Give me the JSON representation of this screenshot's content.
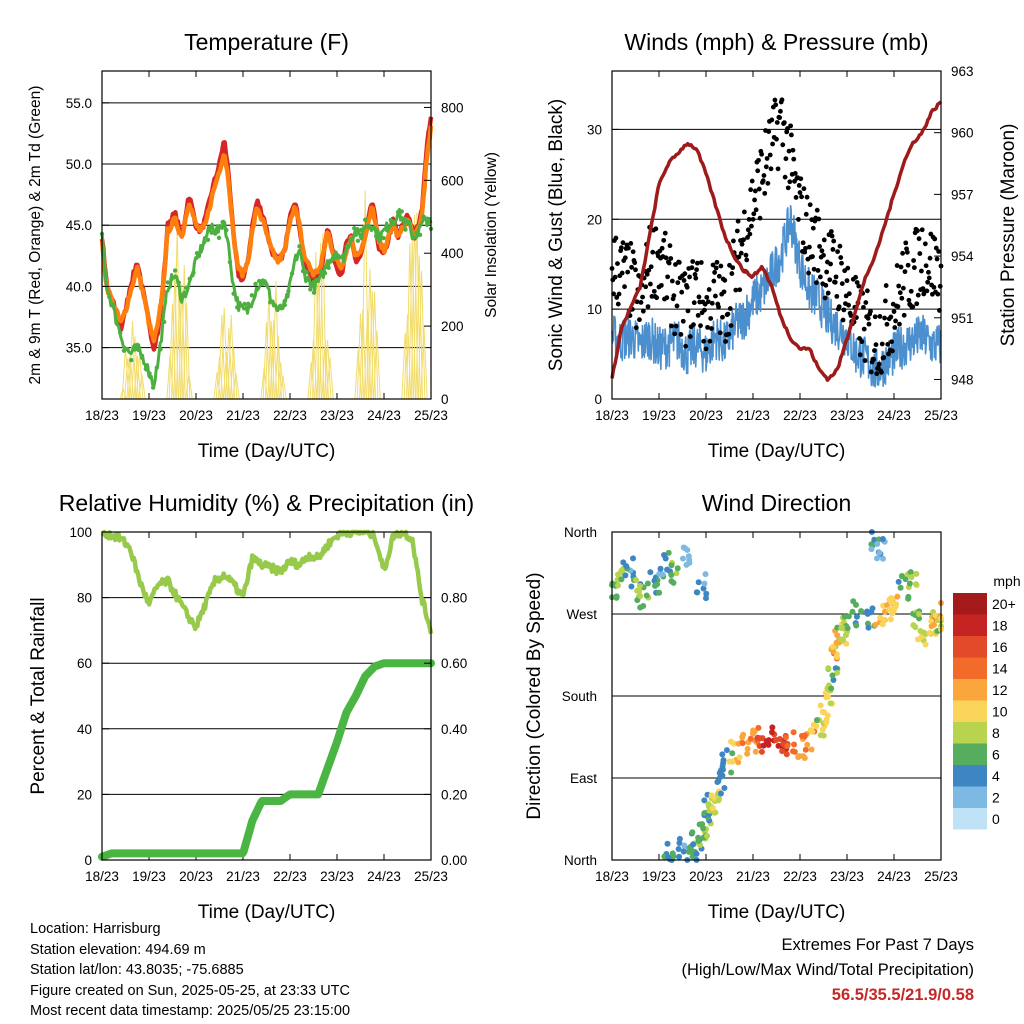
{
  "time_axis": {
    "label": "Time (Day/UTC)",
    "ticks": [
      "18/23",
      "19/23",
      "20/23",
      "21/23",
      "22/23",
      "23/23",
      "24/23",
      "25/23"
    ]
  },
  "chart_data": [
    {
      "id": "temperature",
      "type": "line",
      "title": "Temperature (F)",
      "xlabel": "Time (Day/UTC)",
      "ylabel": "2m & 9m T (Red, Orange) & 2m Td (Green)",
      "y2label": "Solar Insolation (Yellow)",
      "ylim": [
        30.8,
        57.6
      ],
      "y2lim": [
        0,
        900
      ],
      "yticks": [
        "35.0",
        "40.0",
        "45.0",
        "50.0",
        "55.0"
      ],
      "y2ticks": [
        "0",
        "200",
        "400",
        "600",
        "800"
      ],
      "x": [
        0,
        0.1,
        0.25,
        0.4,
        0.5,
        0.6,
        0.75,
        0.9,
        1.0,
        1.1,
        1.2,
        1.3,
        1.4,
        1.55,
        1.7,
        1.85,
        2.0,
        2.1,
        2.2,
        2.35,
        2.5,
        2.6,
        2.7,
        2.8,
        2.9,
        3.0,
        3.1,
        3.2,
        3.3,
        3.45,
        3.6,
        3.75,
        3.9,
        4.0,
        4.1,
        4.2,
        4.3,
        4.5,
        4.65,
        4.8,
        4.9,
        5.0,
        5.1,
        5.2,
        5.3,
        5.4,
        5.5,
        5.6,
        5.75,
        5.9,
        6.0,
        6.1,
        6.2,
        6.3,
        6.5,
        6.65,
        6.8,
        6.9,
        7.0
      ],
      "series": [
        {
          "name": "2m T",
          "color": "#d62728",
          "values": [
            44,
            40,
            38.5,
            36.5,
            38,
            40,
            42,
            39,
            37,
            35,
            36.5,
            40,
            45,
            46,
            44,
            47.5,
            45,
            44.5,
            45.5,
            48,
            50,
            52,
            49,
            44,
            41,
            40.5,
            42,
            45,
            47,
            45.5,
            43,
            42,
            43,
            46,
            47,
            45,
            42,
            40.5,
            41,
            45,
            43,
            41.5,
            41,
            43.5,
            44,
            42,
            42.5,
            44,
            47,
            43,
            42.5,
            44,
            45.5,
            44,
            46,
            44,
            46,
            51,
            54
          ]
        },
        {
          "name": "9m T",
          "color": "#ff7f0e",
          "values": [
            43.5,
            40,
            38.5,
            37,
            38,
            39.5,
            41.5,
            39,
            37,
            35.5,
            37,
            40,
            44.5,
            45.5,
            44,
            47,
            45,
            44.5,
            45,
            47.5,
            49.5,
            51,
            48.5,
            44,
            41.5,
            41,
            42,
            44.5,
            46.5,
            45,
            43,
            42,
            43,
            45.5,
            46.5,
            45,
            42.5,
            41,
            41.5,
            44.5,
            43,
            42,
            41.5,
            43,
            44,
            42.5,
            43,
            44,
            46.5,
            43.5,
            43,
            44,
            45,
            44,
            45.5,
            44,
            45.5,
            50,
            53
          ]
        },
        {
          "name": "2m Td",
          "color": "#4caf3f",
          "values": [
            44,
            40,
            38,
            36,
            35,
            34.5,
            35,
            34,
            33,
            32,
            34,
            37,
            40,
            41,
            39,
            40,
            42,
            43,
            44,
            45,
            44.5,
            45.5,
            43,
            40,
            38.5,
            38,
            38,
            39,
            40,
            40.5,
            39,
            38,
            38.5,
            40,
            42,
            43,
            41,
            40,
            40.5,
            42,
            42.5,
            43,
            42,
            43,
            44,
            44.5,
            44,
            45,
            45,
            44,
            44.5,
            45,
            45.5,
            46,
            45,
            44,
            45,
            45.5,
            45
          ]
        },
        {
          "name": "Solar Insolation",
          "color": "#f2dc6a",
          "values": [
            0,
            0,
            0,
            0,
            0,
            0,
            0,
            0,
            0,
            0,
            0,
            0,
            0,
            0,
            0,
            0,
            0,
            0,
            0,
            0,
            0,
            0,
            0,
            0,
            0,
            0,
            0,
            0,
            0,
            0,
            0,
            0,
            0,
            0,
            0,
            0,
            0,
            0,
            0,
            0,
            0,
            0,
            0,
            0,
            0,
            0,
            0,
            0,
            0,
            0,
            0,
            0,
            0,
            0,
            0,
            0,
            0,
            0,
            0
          ]
        }
      ]
    },
    {
      "id": "winds",
      "type": "scatter",
      "title": "Winds (mph) & Pressure (mb)",
      "xlabel": "Time (Day/UTC)",
      "ylabel": "Sonic Wind & Gust (Blue, Black)",
      "y2label": "Station Pressure (Maroon)",
      "ylim": [
        0,
        36.5
      ],
      "y2lim": [
        947.05,
        963.0
      ],
      "yticks": [
        "0",
        "10",
        "20",
        "30"
      ],
      "y2ticks": [
        "948",
        "951",
        "954",
        "957",
        "960",
        "963"
      ],
      "x": [
        0,
        0.2,
        0.4,
        0.6,
        0.8,
        1.0,
        1.2,
        1.4,
        1.6,
        1.8,
        2.0,
        2.2,
        2.4,
        2.6,
        2.8,
        3.0,
        3.2,
        3.4,
        3.6,
        3.8,
        4.0,
        4.2,
        4.4,
        4.6,
        4.8,
        5.0,
        5.2,
        5.4,
        5.6,
        5.8,
        6.0,
        6.2,
        6.4,
        6.6,
        6.8,
        7.0
      ],
      "series": [
        {
          "name": "Sonic Wind",
          "color": "#4b8fce",
          "values": [
            7,
            6.5,
            7,
            6,
            7,
            5.5,
            6,
            6.5,
            5,
            6,
            5,
            7,
            6,
            8,
            9,
            11,
            12,
            14,
            16,
            20,
            15,
            12,
            11,
            9,
            8,
            7,
            5,
            4.5,
            3,
            4,
            5,
            6,
            6.5,
            7,
            6,
            6
          ]
        },
        {
          "name": "Gust",
          "color": "#000000",
          "values": [
            15,
            14,
            13,
            10,
            15,
            16,
            13,
            11,
            10,
            13,
            9,
            12,
            10,
            14,
            18,
            22,
            25,
            28,
            31,
            26,
            21,
            18,
            17,
            15,
            14,
            12,
            9,
            8,
            6,
            8,
            10,
            13,
            14,
            16,
            15,
            14
          ]
        },
        {
          "name": "Station Pressure",
          "color": "#9e1b1b",
          "values": [
            948,
            950.5,
            951.5,
            952.5,
            955,
            957.5,
            958.5,
            959,
            959.5,
            959.2,
            958,
            956.5,
            955,
            954,
            953.3,
            953,
            953.5,
            952.5,
            951,
            950,
            949.5,
            949.5,
            948.5,
            948,
            948.5,
            950,
            951.5,
            953,
            954,
            955.5,
            957,
            958.5,
            959.5,
            960,
            961,
            961.5
          ]
        }
      ]
    },
    {
      "id": "humidity",
      "type": "line",
      "title": "Relative Humidity (%) & Precipitation (in)",
      "xlabel": "Time (Day/UTC)",
      "ylabel": "Percent & Total Rainfall",
      "ylim": [
        0,
        100
      ],
      "y2lim": [
        0,
        1.0
      ],
      "yticks": [
        "0",
        "20",
        "40",
        "60",
        "80",
        "100"
      ],
      "y2ticks": [
        "0.00",
        "0.20",
        "0.40",
        "0.60",
        "0.80"
      ],
      "x": [
        0,
        0.2,
        0.4,
        0.6,
        0.8,
        1.0,
        1.2,
        1.4,
        1.6,
        1.8,
        2.0,
        2.2,
        2.4,
        2.6,
        2.8,
        3.0,
        3.2,
        3.4,
        3.6,
        3.8,
        4.0,
        4.2,
        4.4,
        4.6,
        4.8,
        5.0,
        5.2,
        5.4,
        5.6,
        5.8,
        6.0,
        6.2,
        6.4,
        6.6,
        6.8,
        7.0
      ],
      "series": [
        {
          "name": "Relative Humidity",
          "color": "#97c94b",
          "values": [
            100,
            99,
            98,
            95,
            85,
            78,
            84,
            85,
            80,
            75,
            71,
            78,
            85,
            87,
            84,
            80,
            92,
            90,
            89,
            88,
            91,
            90,
            93,
            92,
            96,
            99,
            100,
            100,
            100,
            99,
            88,
            99,
            100,
            98,
            80,
            70
          ]
        },
        {
          "name": "Total Precipitation",
          "color": "#4bb543",
          "values": [
            0.01,
            0.02,
            0.02,
            0.02,
            0.02,
            0.02,
            0.02,
            0.02,
            0.02,
            0.02,
            0.02,
            0.02,
            0.02,
            0.02,
            0.02,
            0.02,
            0.12,
            0.18,
            0.18,
            0.18,
            0.2,
            0.2,
            0.2,
            0.2,
            0.28,
            0.36,
            0.45,
            0.5,
            0.56,
            0.59,
            0.6,
            0.6,
            0.6,
            0.6,
            0.6,
            0.6
          ]
        }
      ]
    },
    {
      "id": "direction",
      "type": "scatter",
      "title": "Wind Direction",
      "xlabel": "Time (Day/UTC)",
      "ylabel": "Direction (Colored By Speed)",
      "ylim": [
        0,
        360
      ],
      "yticks": [
        "North",
        "East",
        "South",
        "West",
        "North"
      ],
      "legend": {
        "title": "mph",
        "labels": [
          "20+",
          "18",
          "16",
          "14",
          "12",
          "10",
          "8",
          "6",
          "4",
          "2",
          "0"
        ],
        "colors": [
          "#a51b1b",
          "#c62323",
          "#e34a2a",
          "#f26b2b",
          "#fba63c",
          "#fad55a",
          "#b8d34d",
          "#56ad5e",
          "#3d86c3",
          "#7db9e3",
          "#bfe2f6"
        ]
      },
      "points_deg": [
        300,
        310,
        320,
        295,
        290,
        305,
        325,
        315,
        330,
        300,
        10,
        15,
        5,
        20,
        30,
        40,
        60,
        55,
        70,
        85,
        110,
        120,
        125,
        130,
        132,
        135,
        130,
        128,
        125,
        130,
        140,
        160,
        180,
        200,
        230,
        240,
        250,
        255,
        270,
        265,
        270,
        275,
        280,
        350,
        340,
        300,
        310,
        265,
        250,
        260,
        270,
        255
      ],
      "points_x": [
        0.05,
        0.2,
        0.35,
        0.5,
        0.7,
        0.9,
        1.1,
        1.3,
        1.6,
        1.9,
        1.2,
        1.5,
        1.7,
        1.8,
        1.9,
        2.0,
        2.05,
        2.1,
        2.2,
        2.3,
        2.45,
        2.6,
        2.8,
        3.0,
        3.2,
        3.4,
        3.6,
        3.8,
        4.0,
        4.2,
        4.4,
        4.55,
        4.6,
        4.7,
        4.75,
        4.8,
        4.9,
        4.95,
        5.2,
        5.5,
        5.7,
        5.9,
        6.0,
        5.6,
        5.7,
        6.2,
        6.4,
        6.5,
        6.6,
        6.8,
        6.9,
        7.0
      ],
      "points_speed": [
        6,
        8,
        4,
        6,
        7,
        5,
        4,
        6,
        2,
        4,
        5,
        4,
        6,
        5,
        7,
        6,
        5,
        8,
        9,
        4,
        5,
        11,
        12,
        13,
        16,
        18,
        17,
        15,
        14,
        12,
        8,
        10,
        9,
        6,
        12,
        10,
        8,
        7,
        6,
        4,
        12,
        11,
        10,
        4,
        3,
        6,
        8,
        7,
        9,
        10,
        12,
        8
      ]
    }
  ],
  "info": {
    "location": "Location: Harrisburg",
    "elevation": "Station elevation: 494.69 m",
    "latlon": "Station lat/lon: 43.8035; -75.6885",
    "created": "Figure created on Sun, 2025-05-25, at 23:33 UTC",
    "recent": "Most recent data timestamp: 2025/05/25 23:15:00"
  },
  "extremes": {
    "title": "Extremes For Past 7 Days",
    "subtitle": "(High/Low/Max Wind/Total Precipitation)",
    "values": "56.5/35.5/21.9/0.58"
  }
}
